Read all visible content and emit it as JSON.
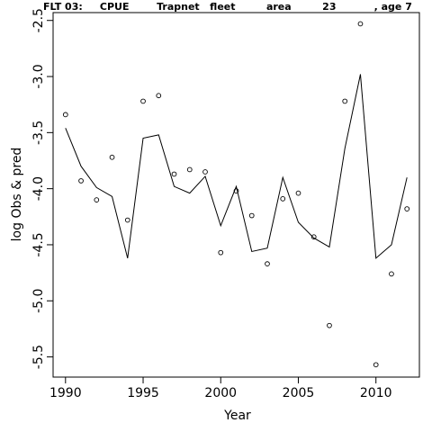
{
  "chart_data": {
    "type": "line",
    "title": "FLT 03:     CPUE        Trapnet   fleet         area         23           , age 7",
    "xlabel": "Year",
    "ylabel": "log Obs & pred",
    "xlim": [
      1989.2,
      2012.8
    ],
    "ylim": [
      -5.68,
      -2.43
    ],
    "x_ticks": [
      1990,
      1995,
      2000,
      2005,
      2010
    ],
    "y_ticks": [
      -2.5,
      -3.0,
      -3.5,
      -4.0,
      -4.5,
      -5.0,
      -5.5
    ],
    "x_tick_labels": [
      "1990",
      "1995",
      "2000",
      "2005",
      "2010"
    ],
    "y_tick_labels": [
      "-2.5",
      "-3.0",
      "-3.5",
      "-4.0",
      "-4.5",
      "-5.0",
      "-5.5"
    ],
    "grid": false,
    "series": [
      {
        "style": "points",
        "x": [
          1990,
          1991,
          1992,
          1993,
          1994,
          1995,
          1996,
          1997,
          1998,
          1999,
          2000,
          2001,
          2002,
          2003,
          2004,
          2005,
          2006,
          2007,
          2008,
          2009,
          2010,
          2011,
          2012
        ],
        "values": [
          -3.34,
          -3.93,
          -4.1,
          -3.72,
          -4.28,
          -3.22,
          -3.17,
          -3.87,
          -3.83,
          -3.85,
          -4.57,
          -4.02,
          -4.24,
          -4.67,
          -4.09,
          -4.04,
          -4.43,
          -5.22,
          -3.22,
          -2.53,
          -5.57,
          -4.76,
          -4.18
        ]
      },
      {
        "style": "line",
        "x": [
          1990,
          1991,
          1992,
          1993,
          1994,
          1995,
          1996,
          1997,
          1998,
          1999,
          2000,
          2001,
          2002,
          2003,
          2004,
          2005,
          2006,
          2007,
          2008,
          2009,
          2010,
          2011,
          2012
        ],
        "values": [
          -3.46,
          -3.8,
          -3.99,
          -4.07,
          -4.62,
          -3.55,
          -3.52,
          -3.98,
          -4.04,
          -3.89,
          -4.33,
          -3.98,
          -4.56,
          -4.53,
          -3.9,
          -4.3,
          -4.44,
          -4.52,
          -3.64,
          -2.98,
          -4.62,
          -4.5,
          -3.9
        ]
      }
    ]
  }
}
